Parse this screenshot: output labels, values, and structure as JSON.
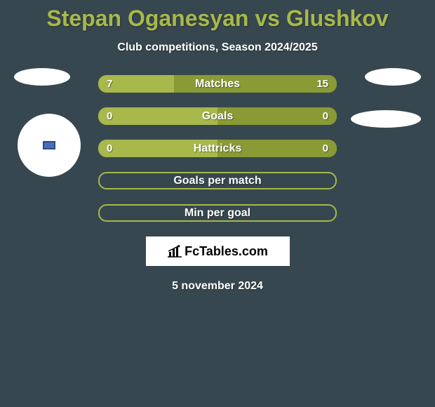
{
  "title": "Stepan Oganesyan vs Glushkov",
  "subtitle": "Club competitions, Season 2024/2025",
  "date": "5 november 2024",
  "logo_text": "FcTables.com",
  "colors": {
    "background": "#37474f",
    "accent": "#a8b84a",
    "accent_dark": "#8a9a35",
    "white": "#ffffff",
    "club_badge": "#4a6db8"
  },
  "stats": [
    {
      "label": "Matches",
      "left_value": "7",
      "right_value": "15",
      "type": "dual",
      "left_pct": 31.8,
      "right_pct": 68.2
    },
    {
      "label": "Goals",
      "left_value": "0",
      "right_value": "0",
      "type": "dual",
      "left_pct": 50,
      "right_pct": 50
    },
    {
      "label": "Hattricks",
      "left_value": "0",
      "right_value": "0",
      "type": "dual",
      "left_pct": 50,
      "right_pct": 50
    },
    {
      "label": "Goals per match",
      "type": "single"
    },
    {
      "label": "Min per goal",
      "type": "single"
    }
  ]
}
